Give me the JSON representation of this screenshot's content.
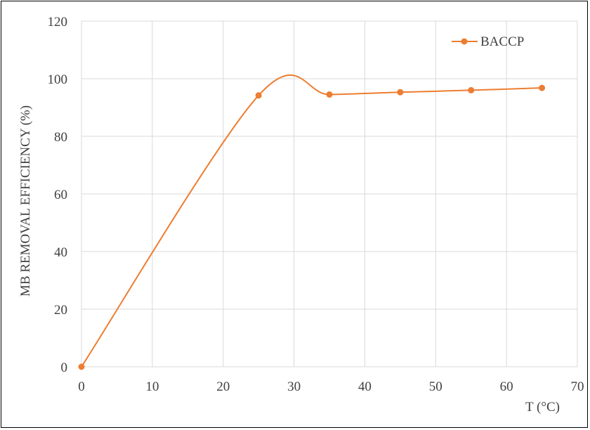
{
  "chart_data": {
    "type": "line",
    "title": "",
    "xlabel": "T (°C)",
    "ylabel": "MB REMOVAL EFFICIENCY (%)",
    "xlim": [
      0,
      70
    ],
    "ylim": [
      0,
      120
    ],
    "x_ticks": [
      0,
      10,
      20,
      30,
      40,
      50,
      60,
      70
    ],
    "y_ticks": [
      0,
      20,
      40,
      60,
      80,
      100,
      120
    ],
    "x_tick_labels": [
      "0",
      "10",
      "20",
      "30",
      "40",
      "50",
      "60",
      "70"
    ],
    "y_tick_labels": [
      "0",
      "20",
      "40",
      "60",
      "80",
      "100",
      "120"
    ],
    "grid": true,
    "smooth": true,
    "legend_position": "top-right",
    "series": [
      {
        "name": "BACCP",
        "color": "#ED7D31",
        "x": [
          0,
          25,
          35,
          45,
          55,
          65
        ],
        "y": [
          0,
          94.2,
          94.5,
          95.3,
          96.0,
          96.8
        ]
      }
    ]
  }
}
